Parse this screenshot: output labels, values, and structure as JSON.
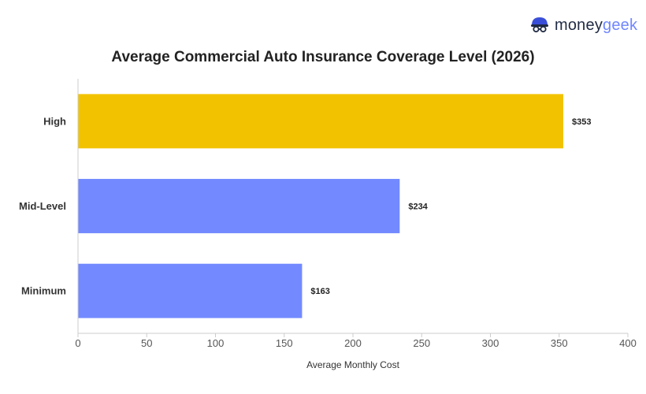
{
  "brand": {
    "word1": "money",
    "word2": "geek"
  },
  "chart_data": {
    "type": "bar",
    "orientation": "horizontal",
    "title": "Average Commercial Auto Insurance Coverage Level (2026)",
    "xlabel": "Average Monthly Cost",
    "ylabel": "",
    "categories": [
      "High",
      "Mid-Level",
      "Minimum"
    ],
    "values": [
      353,
      234,
      163
    ],
    "value_labels": [
      "$353",
      "$234",
      "$163"
    ],
    "bar_colors": [
      "#f2c200",
      "#7289ff",
      "#7289ff"
    ],
    "xlim": [
      0,
      400
    ],
    "xticks": [
      0,
      50,
      100,
      150,
      200,
      250,
      300,
      350,
      400
    ],
    "grid": false,
    "legend": "none"
  }
}
